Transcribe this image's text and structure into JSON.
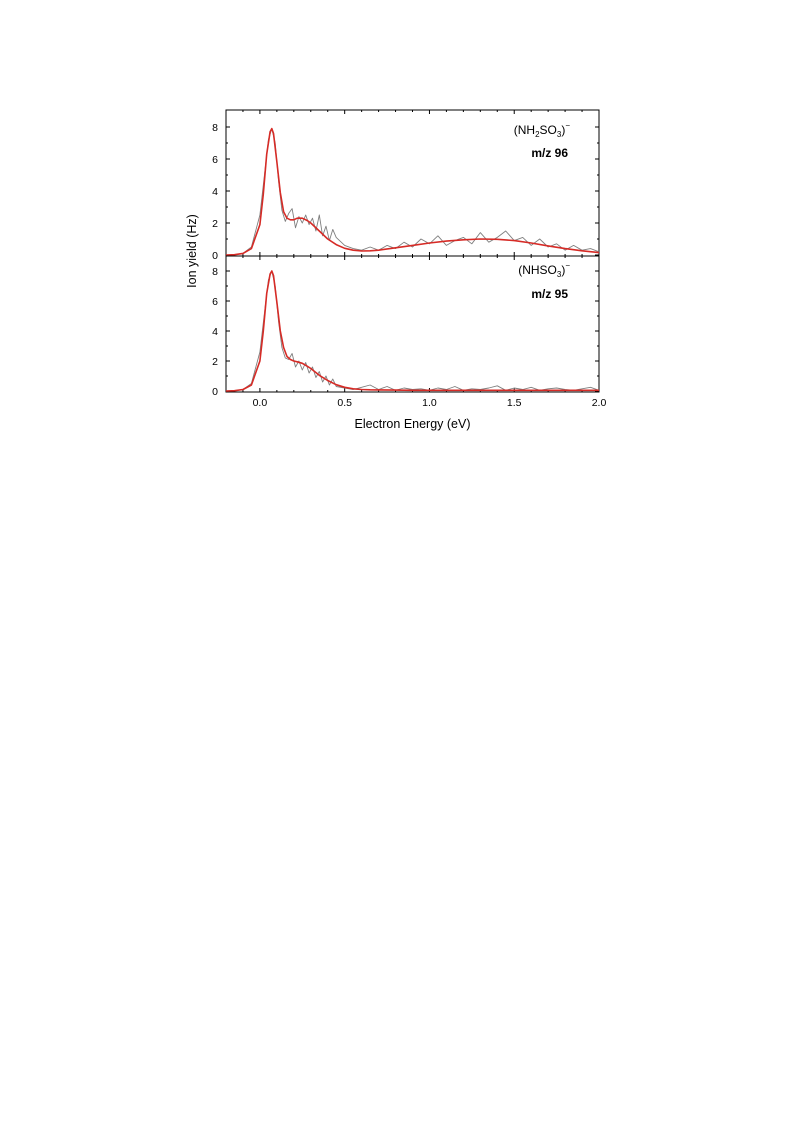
{
  "chart_data": [
    {
      "type": "line",
      "panel": "top",
      "ion": "(NH2SO3)−",
      "ion_parts": {
        "open": "(NH",
        "sub1": "2",
        "mid": "SO",
        "sub2": "3",
        "close": ")",
        "sup": "−"
      },
      "mz_label": "m/z 96",
      "xlim": [
        -0.2,
        2.0
      ],
      "ylim": [
        0,
        9
      ],
      "y_ticks": [
        "0",
        "2",
        "4",
        "6",
        "8"
      ],
      "series": [
        {
          "role": "measured",
          "color": "#7f7f7f",
          "x": [
            -0.2,
            -0.15,
            -0.1,
            -0.05,
            0.0,
            0.025,
            0.05,
            0.07,
            0.09,
            0.11,
            0.13,
            0.15,
            0.17,
            0.19,
            0.21,
            0.23,
            0.25,
            0.27,
            0.29,
            0.31,
            0.33,
            0.35,
            0.37,
            0.39,
            0.41,
            0.43,
            0.45,
            0.5,
            0.55,
            0.6,
            0.65,
            0.7,
            0.75,
            0.8,
            0.85,
            0.9,
            0.95,
            1.0,
            1.05,
            1.1,
            1.15,
            1.2,
            1.25,
            1.3,
            1.35,
            1.4,
            1.45,
            1.5,
            1.55,
            1.6,
            1.65,
            1.7,
            1.75,
            1.8,
            1.85,
            1.9,
            1.95,
            2.0
          ],
          "y": [
            0.0,
            0.02,
            0.1,
            0.5,
            2.5,
            4.8,
            7.2,
            7.9,
            7.0,
            4.6,
            2.8,
            2.1,
            2.6,
            2.9,
            1.7,
            2.4,
            2.0,
            2.5,
            1.9,
            2.3,
            1.5,
            2.5,
            1.2,
            1.8,
            0.9,
            1.6,
            1.1,
            0.6,
            0.4,
            0.3,
            0.5,
            0.3,
            0.6,
            0.4,
            0.8,
            0.5,
            1.0,
            0.7,
            1.2,
            0.6,
            0.9,
            1.1,
            0.7,
            1.4,
            0.8,
            1.1,
            1.5,
            0.9,
            1.1,
            0.6,
            1.0,
            0.5,
            0.7,
            0.3,
            0.6,
            0.3,
            0.4,
            0.2
          ]
        },
        {
          "role": "fit",
          "color": "#d62b26",
          "x": [
            -0.2,
            -0.15,
            -0.1,
            -0.05,
            0.0,
            0.02,
            0.04,
            0.06,
            0.07,
            0.08,
            0.1,
            0.12,
            0.14,
            0.16,
            0.18,
            0.2,
            0.22,
            0.25,
            0.28,
            0.3,
            0.35,
            0.4,
            0.45,
            0.5,
            0.55,
            0.6,
            0.65,
            0.7,
            0.8,
            0.9,
            1.0,
            1.1,
            1.2,
            1.3,
            1.4,
            1.5,
            1.6,
            1.7,
            1.8,
            1.9,
            2.0
          ],
          "y": [
            0.0,
            0.02,
            0.1,
            0.4,
            1.9,
            3.8,
            6.3,
            7.7,
            7.9,
            7.6,
            5.8,
            3.9,
            2.7,
            2.3,
            2.2,
            2.2,
            2.3,
            2.3,
            2.15,
            2.0,
            1.5,
            1.0,
            0.65,
            0.42,
            0.3,
            0.25,
            0.26,
            0.3,
            0.45,
            0.6,
            0.75,
            0.87,
            0.95,
            1.0,
            0.98,
            0.9,
            0.75,
            0.57,
            0.4,
            0.26,
            0.15
          ]
        }
      ]
    },
    {
      "type": "line",
      "panel": "bottom",
      "ion": "(NHSO3)−",
      "ion_parts": {
        "open": "(NHSO",
        "sub1": "3",
        "close": ")",
        "sup": "−"
      },
      "mz_label": "m/z 95",
      "xlim": [
        -0.2,
        2.0
      ],
      "ylim": [
        0,
        9
      ],
      "y_ticks": [
        "0",
        "2",
        "4",
        "6",
        "8"
      ],
      "x_ticks": [
        "0.0",
        "0.5",
        "1.0",
        "1.5",
        "2.0"
      ],
      "series": [
        {
          "role": "measured",
          "color": "#7f7f7f",
          "x": [
            -0.2,
            -0.15,
            -0.1,
            -0.05,
            0.0,
            0.025,
            0.05,
            0.07,
            0.09,
            0.11,
            0.13,
            0.15,
            0.17,
            0.19,
            0.21,
            0.23,
            0.25,
            0.27,
            0.29,
            0.31,
            0.33,
            0.35,
            0.37,
            0.39,
            0.41,
            0.43,
            0.45,
            0.5,
            0.55,
            0.6,
            0.65,
            0.7,
            0.75,
            0.8,
            0.85,
            0.9,
            0.95,
            1.0,
            1.05,
            1.1,
            1.15,
            1.2,
            1.25,
            1.3,
            1.35,
            1.4,
            1.45,
            1.5,
            1.55,
            1.6,
            1.65,
            1.7,
            1.75,
            1.8,
            1.85,
            1.9,
            1.95,
            2.0
          ],
          "y": [
            0.0,
            0.02,
            0.1,
            0.5,
            2.6,
            5.0,
            7.4,
            8.0,
            7.0,
            4.6,
            2.9,
            2.2,
            2.1,
            2.5,
            1.6,
            2.0,
            1.4,
            1.9,
            1.2,
            1.6,
            0.9,
            1.3,
            0.6,
            1.0,
            0.4,
            0.8,
            0.3,
            0.2,
            0.1,
            0.25,
            0.4,
            0.1,
            0.3,
            0.05,
            0.2,
            0.1,
            0.15,
            0.05,
            0.2,
            0.1,
            0.3,
            0.05,
            0.15,
            0.1,
            0.2,
            0.35,
            0.05,
            0.2,
            0.1,
            0.25,
            0.05,
            0.15,
            0.2,
            0.1,
            0.05,
            0.15,
            0.25,
            0.05
          ]
        },
        {
          "role": "fit",
          "color": "#d62b26",
          "x": [
            -0.2,
            -0.15,
            -0.1,
            -0.05,
            0.0,
            0.02,
            0.04,
            0.06,
            0.07,
            0.08,
            0.1,
            0.12,
            0.14,
            0.16,
            0.18,
            0.2,
            0.22,
            0.25,
            0.28,
            0.3,
            0.35,
            0.4,
            0.45,
            0.5,
            0.55,
            0.6,
            0.65,
            0.7,
            0.8,
            0.9,
            1.0,
            1.2,
            1.4,
            1.6,
            1.8,
            2.0
          ],
          "y": [
            0.0,
            0.02,
            0.1,
            0.4,
            2.0,
            4.0,
            6.5,
            7.8,
            8.0,
            7.7,
            5.9,
            4.0,
            2.9,
            2.3,
            2.1,
            2.0,
            1.95,
            1.85,
            1.65,
            1.5,
            1.05,
            0.7,
            0.42,
            0.25,
            0.15,
            0.1,
            0.08,
            0.07,
            0.06,
            0.05,
            0.05,
            0.05,
            0.05,
            0.05,
            0.05,
            0.05
          ]
        }
      ]
    }
  ],
  "axes": {
    "ylabel": "Ion yield (Hz)",
    "xlabel": "Electron Energy (eV)"
  }
}
